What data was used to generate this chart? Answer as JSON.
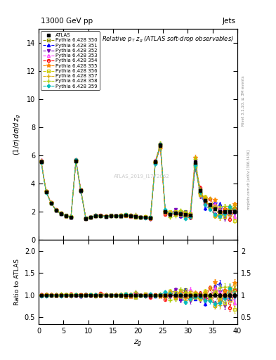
{
  "title_top_left": "13000 GeV pp",
  "title_top_right": "Jets",
  "main_title": "Relative p_T z_g (ATLAS soft-drop observables)",
  "ylabel_main": "(1/σ) dσ/d z_g",
  "ylabel_ratio": "Ratio to ATLAS",
  "xlabel": "z_g",
  "watermark": "ATLAS_2019_I1772062",
  "rivet_text": "Rivet 3.1.10, ≥ 3M events",
  "inspire_text": "mcplots.cern.ch [arXiv:1306.3436]",
  "xlim": [
    0,
    40
  ],
  "ylim_main": [
    0,
    15
  ],
  "ylim_ratio": [
    0.35,
    2.25
  ],
  "yticks_main": [
    0,
    2,
    4,
    6,
    8,
    10,
    12,
    14
  ],
  "yticks_ratio": [
    0.5,
    1.0,
    1.5,
    2.0
  ],
  "x_data": [
    0.5,
    1.5,
    2.5,
    3.5,
    4.5,
    5.5,
    6.5,
    7.5,
    8.5,
    9.5,
    10.5,
    11.5,
    12.5,
    13.5,
    14.5,
    15.5,
    16.5,
    17.5,
    18.5,
    19.5,
    20.5,
    21.5,
    22.5,
    23.5,
    24.5,
    25.5,
    26.5,
    27.5,
    28.5,
    29.5,
    30.5,
    31.5,
    32.5,
    33.5,
    34.5,
    35.5,
    36.5,
    37.5,
    38.5,
    39.5
  ],
  "atlas_y": [
    5.55,
    3.4,
    2.6,
    2.1,
    1.85,
    1.7,
    1.6,
    5.6,
    3.5,
    1.5,
    1.6,
    1.7,
    1.7,
    1.65,
    1.7,
    1.7,
    1.7,
    1.75,
    1.7,
    1.65,
    1.6,
    1.6,
    1.55,
    5.55,
    6.7,
    2.0,
    1.8,
    1.9,
    1.85,
    1.8,
    1.75,
    5.5,
    3.5,
    2.8,
    2.5,
    2.2,
    2.0,
    2.0,
    2.0,
    2.0
  ],
  "atlas_yerr": [
    0.08,
    0.06,
    0.05,
    0.04,
    0.04,
    0.03,
    0.03,
    0.09,
    0.07,
    0.04,
    0.03,
    0.03,
    0.03,
    0.03,
    0.03,
    0.03,
    0.03,
    0.03,
    0.03,
    0.03,
    0.03,
    0.03,
    0.03,
    0.09,
    0.13,
    0.06,
    0.06,
    0.06,
    0.06,
    0.06,
    0.06,
    0.13,
    0.1,
    0.09,
    0.09,
    0.09,
    0.09,
    0.09,
    0.09,
    0.09
  ],
  "series": [
    {
      "label": "Pythia 6.428 350",
      "color": "#999900",
      "linestyle": "--",
      "marker": "s",
      "markerfill": "none",
      "markersize": 3
    },
    {
      "label": "Pythia 6.428 351",
      "color": "#0000ff",
      "linestyle": "--",
      "marker": "^",
      "markerfill": "full",
      "markersize": 3
    },
    {
      "label": "Pythia 6.428 352",
      "color": "#7700bb",
      "linestyle": "--",
      "marker": "v",
      "markerfill": "full",
      "markersize": 3
    },
    {
      "label": "Pythia 6.428 353",
      "color": "#ff44ff",
      "linestyle": "--",
      "marker": "^",
      "markerfill": "none",
      "markersize": 3
    },
    {
      "label": "Pythia 6.428 354",
      "color": "#ff0000",
      "linestyle": "--",
      "marker": "o",
      "markerfill": "none",
      "markersize": 3
    },
    {
      "label": "Pythia 6.428 355",
      "color": "#ff8800",
      "linestyle": "--",
      "marker": "*",
      "markerfill": "full",
      "markersize": 4
    },
    {
      "label": "Pythia 6.428 356",
      "color": "#cccc00",
      "linestyle": "--",
      "marker": "s",
      "markerfill": "none",
      "markersize": 3
    },
    {
      "label": "Pythia 6.428 357",
      "color": "#ddaa00",
      "linestyle": "--",
      "marker": "+",
      "markerfill": "full",
      "markersize": 4
    },
    {
      "label": "Pythia 6.428 358",
      "color": "#aacc00",
      "linestyle": "--",
      "marker": "+",
      "markerfill": "full",
      "markersize": 4
    },
    {
      "label": "Pythia 6.428 359",
      "color": "#00bbbb",
      "linestyle": "--",
      "marker": "D",
      "markerfill": "full",
      "markersize": 2.5
    }
  ],
  "background_color": "#ffffff",
  "ratio_band_color": "#ffff99"
}
